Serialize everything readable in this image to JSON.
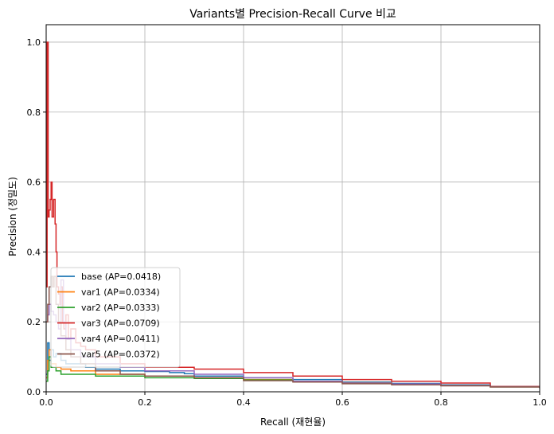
{
  "chart_data": {
    "type": "line",
    "title": "Variants별 Precision-Recall Curve 비교",
    "xlabel": "Recall (재현율)",
    "ylabel": "Precision (정밀도)",
    "xlim": [
      0,
      1
    ],
    "ylim": [
      0,
      1.05
    ],
    "xticks": [
      "0.0",
      "0.2",
      "0.4",
      "0.6",
      "0.8",
      "1.0"
    ],
    "yticks": [
      "0.0",
      "0.2",
      "0.4",
      "0.6",
      "0.8",
      "1.0"
    ],
    "grid": true,
    "legend_position": "lower-left",
    "series": [
      {
        "name": "base (AP=0.0418)",
        "color": "#1f77b4",
        "points": [
          [
            0,
            0.05
          ],
          [
            0.003,
            0.14
          ],
          [
            0.006,
            0.09
          ],
          [
            0.01,
            0.12
          ],
          [
            0.015,
            0.1
          ],
          [
            0.02,
            0.11
          ],
          [
            0.03,
            0.09
          ],
          [
            0.04,
            0.08
          ],
          [
            0.06,
            0.08
          ],
          [
            0.08,
            0.07
          ],
          [
            0.1,
            0.065
          ],
          [
            0.15,
            0.06
          ],
          [
            0.2,
            0.058
          ],
          [
            0.25,
            0.055
          ],
          [
            0.28,
            0.052
          ],
          [
            0.3,
            0.045
          ],
          [
            0.4,
            0.04
          ],
          [
            0.5,
            0.035
          ],
          [
            0.6,
            0.028
          ],
          [
            0.7,
            0.024
          ],
          [
            0.8,
            0.02
          ],
          [
            0.9,
            0.015
          ],
          [
            1.0,
            0.011
          ]
        ]
      },
      {
        "name": "var1 (AP=0.0334)",
        "color": "#ff7f0e",
        "points": [
          [
            0,
            0.04
          ],
          [
            0.003,
            0.09
          ],
          [
            0.006,
            0.12
          ],
          [
            0.01,
            0.08
          ],
          [
            0.02,
            0.07
          ],
          [
            0.03,
            0.065
          ],
          [
            0.05,
            0.06
          ],
          [
            0.1,
            0.05
          ],
          [
            0.2,
            0.045
          ],
          [
            0.3,
            0.04
          ],
          [
            0.4,
            0.035
          ],
          [
            0.5,
            0.03
          ],
          [
            0.6,
            0.026
          ],
          [
            0.7,
            0.022
          ],
          [
            0.8,
            0.018
          ],
          [
            0.9,
            0.014
          ],
          [
            1.0,
            0.011
          ]
        ]
      },
      {
        "name": "var2 (AP=0.0333)",
        "color": "#2ca02c",
        "points": [
          [
            0,
            0.03
          ],
          [
            0.003,
            0.06
          ],
          [
            0.006,
            0.1
          ],
          [
            0.01,
            0.07
          ],
          [
            0.02,
            0.06
          ],
          [
            0.03,
            0.05
          ],
          [
            0.05,
            0.05
          ],
          [
            0.1,
            0.045
          ],
          [
            0.2,
            0.04
          ],
          [
            0.3,
            0.038
          ],
          [
            0.4,
            0.034
          ],
          [
            0.5,
            0.03
          ],
          [
            0.6,
            0.025
          ],
          [
            0.7,
            0.022
          ],
          [
            0.8,
            0.018
          ],
          [
            0.9,
            0.014
          ],
          [
            1.0,
            0.011
          ]
        ]
      },
      {
        "name": "var3 (AP=0.0709)",
        "color": "#d62728",
        "points": [
          [
            0,
            0.3
          ],
          [
            0.002,
            1.0
          ],
          [
            0.004,
            0.5
          ],
          [
            0.006,
            0.52
          ],
          [
            0.008,
            0.55
          ],
          [
            0.01,
            0.6
          ],
          [
            0.012,
            0.5
          ],
          [
            0.015,
            0.55
          ],
          [
            0.018,
            0.48
          ],
          [
            0.02,
            0.4
          ],
          [
            0.022,
            0.3
          ],
          [
            0.025,
            0.28
          ],
          [
            0.028,
            0.25
          ],
          [
            0.03,
            0.3
          ],
          [
            0.033,
            0.2
          ],
          [
            0.036,
            0.18
          ],
          [
            0.04,
            0.22
          ],
          [
            0.045,
            0.15
          ],
          [
            0.05,
            0.18
          ],
          [
            0.06,
            0.14
          ],
          [
            0.07,
            0.13
          ],
          [
            0.08,
            0.12
          ],
          [
            0.1,
            0.1
          ],
          [
            0.15,
            0.08
          ],
          [
            0.2,
            0.07
          ],
          [
            0.3,
            0.065
          ],
          [
            0.4,
            0.055
          ],
          [
            0.5,
            0.045
          ],
          [
            0.6,
            0.035
          ],
          [
            0.7,
            0.03
          ],
          [
            0.8,
            0.025
          ],
          [
            0.9,
            0.015
          ],
          [
            1.0,
            0.011
          ]
        ]
      },
      {
        "name": "var4 (AP=0.0411)",
        "color": "#9467bd",
        "points": [
          [
            0,
            0.2
          ],
          [
            0.003,
            0.22
          ],
          [
            0.006,
            0.25
          ],
          [
            0.01,
            0.23
          ],
          [
            0.015,
            0.22
          ],
          [
            0.02,
            0.2
          ],
          [
            0.025,
            0.18
          ],
          [
            0.03,
            0.32
          ],
          [
            0.035,
            0.2
          ],
          [
            0.04,
            0.15
          ],
          [
            0.05,
            0.12
          ],
          [
            0.07,
            0.1
          ],
          [
            0.1,
            0.08
          ],
          [
            0.15,
            0.07
          ],
          [
            0.2,
            0.06
          ],
          [
            0.3,
            0.05
          ],
          [
            0.4,
            0.04
          ],
          [
            0.5,
            0.03
          ],
          [
            0.6,
            0.025
          ],
          [
            0.7,
            0.022
          ],
          [
            0.8,
            0.018
          ],
          [
            0.9,
            0.014
          ],
          [
            1.0,
            0.011
          ]
        ]
      },
      {
        "name": "var5 (AP=0.0372)",
        "color": "#8c564b",
        "points": [
          [
            0,
            0.2
          ],
          [
            0.003,
            0.25
          ],
          [
            0.006,
            0.3
          ],
          [
            0.01,
            0.33
          ],
          [
            0.013,
            0.3
          ],
          [
            0.016,
            0.33
          ],
          [
            0.02,
            0.25
          ],
          [
            0.025,
            0.2
          ],
          [
            0.03,
            0.16
          ],
          [
            0.04,
            0.12
          ],
          [
            0.05,
            0.1
          ],
          [
            0.07,
            0.08
          ],
          [
            0.1,
            0.06
          ],
          [
            0.15,
            0.05
          ],
          [
            0.2,
            0.045
          ],
          [
            0.3,
            0.04
          ],
          [
            0.4,
            0.032
          ],
          [
            0.5,
            0.028
          ],
          [
            0.6,
            0.023
          ],
          [
            0.7,
            0.02
          ],
          [
            0.8,
            0.017
          ],
          [
            0.9,
            0.014
          ],
          [
            1.0,
            0.011
          ]
        ]
      }
    ]
  }
}
